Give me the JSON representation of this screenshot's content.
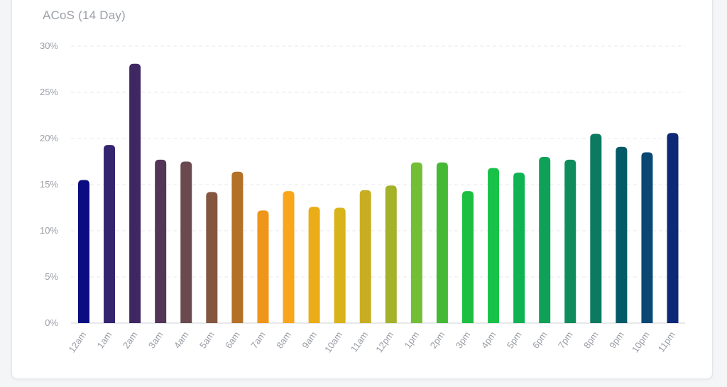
{
  "title": "ACoS (14 Day)",
  "chart_data": {
    "type": "bar",
    "title": "ACoS (14 Day)",
    "xlabel": "",
    "ylabel": "",
    "ylim": [
      0,
      30
    ],
    "y_ticks": [
      "0%",
      "5%",
      "10%",
      "15%",
      "20%",
      "25%",
      "30%"
    ],
    "y_tick_values": [
      0,
      5,
      10,
      15,
      20,
      25,
      30
    ],
    "grid": true,
    "legend": "none",
    "categories": [
      "12am",
      "1am",
      "2am",
      "3am",
      "4am",
      "5am",
      "6am",
      "7am",
      "8am",
      "9am",
      "10am",
      "11am",
      "12pm",
      "1pm",
      "2pm",
      "3pm",
      "4pm",
      "5pm",
      "6pm",
      "7pm",
      "8pm",
      "9pm",
      "10pm",
      "11pm"
    ],
    "values": [
      15.5,
      19.3,
      28.1,
      17.7,
      17.5,
      14.2,
      16.4,
      12.2,
      14.3,
      12.6,
      12.5,
      14.4,
      14.9,
      17.4,
      17.4,
      14.3,
      16.8,
      16.3,
      18.0,
      17.7,
      20.5,
      19.1,
      18.5,
      20.6
    ],
    "colors": [
      "#0b0b82",
      "#35246f",
      "#3f2761",
      "#533558",
      "#6a4a4f",
      "#84563f",
      "#b37128",
      "#ee951a",
      "#f9a61a",
      "#eaad17",
      "#d8b31a",
      "#c8ad22",
      "#a3b229",
      "#72be35",
      "#45b935",
      "#1cbf40",
      "#18c249",
      "#10b353",
      "#0fa157",
      "#0f8c5c",
      "#0c7a60",
      "#055a68",
      "#0a4772",
      "#0d2876"
    ]
  },
  "colors": {
    "grid": "#e8e9ec",
    "axis": "#cfd2d6",
    "tick_text": "#9a9ea6",
    "title_text": "#9b9fa6"
  }
}
